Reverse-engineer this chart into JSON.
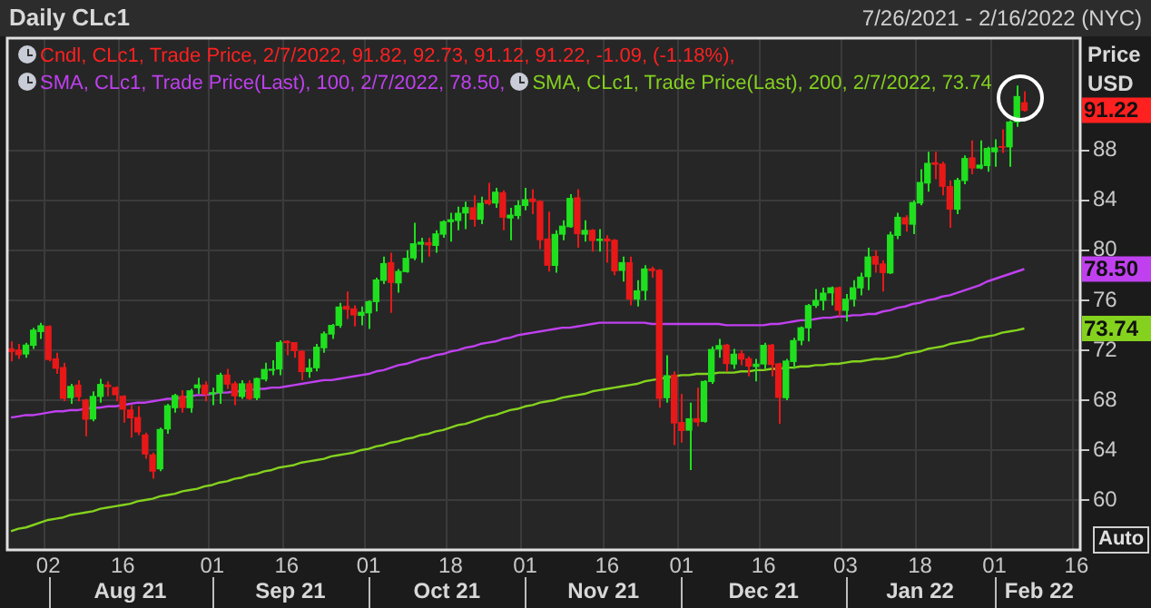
{
  "chart_data": {
    "type": "candlestick",
    "title": "Daily CLc1",
    "subtitle": "7/26/2021 - 2/16/2022 (NYC)",
    "ylabel": "Price USD",
    "annotations": [
      "Aug 21",
      "Sep 21",
      "Oct 21",
      "Nov 21",
      "Dec 21",
      "Jan 22",
      "Feb 22",
      "Auto",
      "91.22",
      "78.50",
      "73.74"
    ],
    "categories": [
      null,
      null,
      null,
      null,
      null,
      "02",
      null,
      null,
      null,
      null,
      null,
      null,
      null,
      null,
      null,
      "16",
      null,
      null,
      null,
      null,
      null,
      null,
      null,
      null,
      null,
      null,
      null,
      "01",
      null,
      null,
      null,
      null,
      null,
      null,
      null,
      null,
      null,
      "16",
      null,
      null,
      null,
      null,
      null,
      null,
      null,
      null,
      null,
      null,
      "01",
      null,
      null,
      null,
      null,
      null,
      null,
      null,
      null,
      null,
      null,
      "18",
      null,
      null,
      null,
      null,
      null,
      null,
      null,
      null,
      null,
      "01",
      null,
      null,
      null,
      null,
      null,
      null,
      null,
      null,
      null,
      null,
      "16",
      null,
      null,
      null,
      null,
      null,
      null,
      null,
      null,
      null,
      "01",
      null,
      null,
      null,
      null,
      null,
      null,
      null,
      null,
      null,
      null,
      "16",
      null,
      null,
      null,
      null,
      null,
      null,
      null,
      null,
      null,
      null,
      "03",
      null,
      null,
      null,
      null,
      null,
      null,
      null,
      null,
      null,
      "18",
      null,
      null,
      null,
      null,
      null,
      null,
      null,
      null,
      null,
      "01",
      null,
      null,
      null,
      null,
      null,
      null,
      null,
      null,
      null,
      null,
      "16"
    ],
    "ylim": [
      56,
      97
    ],
    "yticks": [
      60,
      64,
      68,
      72,
      76,
      80,
      84,
      88
    ],
    "grid": true,
    "legend": "top left",
    "series": [
      {
        "name": "Cndl, CLc1, Trade Price, 2/7/2022, 91.82, 92.73, 91.12, 91.22, -1.09, (-1.18%),",
        "color": "#ff2020",
        "ohlc": [
          [
            72.1,
            72.7,
            71.1,
            71.9
          ],
          [
            72.0,
            72.5,
            71.3,
            71.65
          ],
          [
            71.7,
            72.6,
            71.4,
            72.4
          ],
          [
            72.4,
            73.8,
            72.1,
            73.6
          ],
          [
            73.5,
            74.2,
            72.9,
            73.95
          ],
          [
            73.9,
            74.0,
            71.1,
            71.26
          ],
          [
            71.3,
            71.8,
            70.1,
            70.56
          ],
          [
            70.6,
            71.0,
            67.9,
            68.15
          ],
          [
            68.2,
            69.3,
            67.7,
            69.09
          ],
          [
            69.2,
            69.6,
            67.9,
            68.28
          ],
          [
            68.0,
            68.1,
            65.1,
            66.48
          ],
          [
            66.5,
            68.7,
            66.3,
            68.29
          ],
          [
            68.3,
            69.7,
            67.8,
            69.25
          ],
          [
            69.2,
            69.5,
            68.3,
            69.09
          ],
          [
            69.0,
            69.1,
            67.9,
            68.44
          ],
          [
            68.3,
            68.4,
            66.2,
            67.29
          ],
          [
            67.2,
            67.6,
            65.0,
            66.59
          ],
          [
            66.6,
            67.5,
            65.2,
            65.46
          ],
          [
            65.2,
            65.4,
            63.3,
            63.69
          ],
          [
            63.6,
            63.8,
            61.7,
            62.32
          ],
          [
            62.5,
            65.8,
            62.3,
            65.64
          ],
          [
            65.7,
            67.7,
            65.3,
            67.54
          ],
          [
            67.4,
            68.5,
            67.0,
            68.36
          ],
          [
            68.3,
            68.8,
            67.0,
            67.42
          ],
          [
            67.4,
            68.9,
            67.0,
            68.74
          ],
          [
            69.0,
            69.8,
            68.5,
            69.21
          ],
          [
            69.2,
            69.5,
            67.9,
            68.5
          ],
          [
            68.5,
            69.0,
            67.6,
            68.59
          ],
          [
            68.6,
            70.2,
            67.7,
            69.99
          ],
          [
            70.0,
            70.5,
            68.9,
            69.29
          ],
          [
            69.3,
            69.5,
            67.6,
            68.35
          ],
          [
            68.3,
            69.6,
            68.1,
            69.3
          ],
          [
            69.3,
            69.6,
            68.0,
            68.14
          ],
          [
            68.2,
            69.8,
            68.0,
            69.72
          ],
          [
            69.7,
            71.0,
            69.5,
            70.45
          ],
          [
            70.4,
            71.2,
            70.0,
            70.46
          ],
          [
            70.5,
            72.8,
            70.0,
            72.61
          ],
          [
            72.7,
            72.8,
            71.6,
            72.61
          ],
          [
            72.6,
            72.6,
            71.4,
            71.97
          ],
          [
            71.9,
            72.0,
            69.6,
            70.29
          ],
          [
            70.3,
            71.3,
            69.8,
            70.56
          ],
          [
            70.6,
            72.5,
            70.3,
            72.23
          ],
          [
            72.2,
            73.5,
            71.8,
            73.3
          ],
          [
            73.3,
            74.1,
            72.9,
            73.98
          ],
          [
            74.0,
            75.8,
            73.8,
            75.45
          ],
          [
            75.5,
            76.7,
            74.5,
            75.29
          ],
          [
            75.3,
            75.6,
            73.9,
            74.83
          ],
          [
            74.8,
            75.5,
            74.0,
            75.03
          ],
          [
            75.0,
            76.0,
            73.7,
            75.88
          ],
          [
            75.9,
            77.8,
            75.1,
            77.62
          ],
          [
            77.6,
            79.5,
            77.3,
            78.93
          ],
          [
            79.0,
            79.8,
            75.0,
            77.43
          ],
          [
            77.4,
            78.5,
            76.6,
            78.3
          ],
          [
            78.3,
            80.0,
            78.2,
            79.35
          ],
          [
            79.4,
            82.2,
            79.2,
            80.52
          ],
          [
            80.5,
            81.0,
            79.0,
            80.64
          ],
          [
            80.6,
            81.0,
            79.5,
            80.44
          ],
          [
            80.4,
            81.6,
            79.8,
            81.31
          ],
          [
            81.3,
            82.4,
            81.0,
            82.28
          ],
          [
            82.3,
            83.0,
            80.7,
            82.44
          ],
          [
            82.4,
            83.5,
            81.6,
            82.96
          ],
          [
            83.0,
            83.9,
            81.7,
            83.42
          ],
          [
            83.4,
            84.4,
            81.9,
            82.5
          ],
          [
            82.5,
            84.3,
            82.1,
            83.76
          ],
          [
            84.0,
            85.4,
            83.6,
            83.76
          ],
          [
            83.8,
            85.0,
            83.4,
            84.65
          ],
          [
            84.6,
            84.8,
            81.6,
            82.66
          ],
          [
            82.6,
            83.4,
            80.8,
            82.81
          ],
          [
            82.8,
            84.0,
            82.5,
            83.57
          ],
          [
            83.6,
            85.0,
            83.2,
            84.05
          ],
          [
            84.1,
            84.9,
            82.9,
            83.91
          ],
          [
            83.9,
            84.0,
            80.1,
            80.86
          ],
          [
            80.9,
            83.1,
            78.3,
            78.81
          ],
          [
            78.8,
            81.6,
            78.2,
            81.27
          ],
          [
            81.3,
            82.4,
            80.8,
            81.93
          ],
          [
            81.9,
            84.5,
            81.8,
            84.15
          ],
          [
            84.2,
            84.9,
            80.2,
            81.34
          ],
          [
            81.3,
            82.4,
            80.7,
            81.59
          ],
          [
            81.6,
            81.7,
            79.9,
            80.79
          ],
          [
            80.8,
            81.7,
            79.9,
            80.88
          ],
          [
            80.9,
            81.2,
            79.0,
            80.76
          ],
          [
            80.8,
            80.9,
            78.0,
            78.36
          ],
          [
            78.4,
            79.5,
            77.5,
            79.01
          ],
          [
            79.0,
            79.5,
            75.6,
            76.1
          ],
          [
            76.1,
            77.6,
            75.5,
            76.75
          ],
          [
            76.8,
            78.8,
            76.0,
            78.5
          ],
          [
            78.5,
            78.7,
            77.8,
            78.39
          ],
          [
            78.4,
            78.5,
            67.4,
            68.15
          ],
          [
            68.2,
            71.6,
            67.8,
            69.95
          ],
          [
            70.0,
            70.3,
            64.4,
            66.18
          ],
          [
            66.2,
            68.5,
            64.6,
            65.57
          ],
          [
            65.6,
            67.8,
            62.4,
            66.5
          ],
          [
            66.5,
            69.0,
            65.9,
            66.26
          ],
          [
            66.3,
            69.6,
            66.2,
            69.49
          ],
          [
            69.5,
            72.3,
            69.3,
            72.05
          ],
          [
            72.1,
            72.9,
            71.4,
            72.36
          ],
          [
            72.4,
            72.5,
            70.3,
            70.94
          ],
          [
            70.9,
            72.1,
            70.5,
            71.67
          ],
          [
            71.7,
            72.0,
            70.8,
            71.29
          ],
          [
            71.3,
            71.5,
            69.9,
            70.73
          ],
          [
            70.7,
            71.3,
            69.5,
            70.87
          ],
          [
            70.9,
            72.6,
            70.5,
            72.38
          ],
          [
            72.4,
            72.5,
            69.9,
            70.86
          ],
          [
            70.9,
            71.0,
            66.1,
            68.23
          ],
          [
            68.2,
            71.3,
            68.0,
            71.12
          ],
          [
            71.1,
            73.0,
            70.5,
            72.76
          ],
          [
            72.8,
            73.9,
            72.4,
            73.79
          ],
          [
            73.8,
            75.7,
            72.7,
            75.57
          ],
          [
            75.6,
            76.9,
            75.4,
            75.98
          ],
          [
            76.0,
            77.0,
            75.2,
            76.56
          ],
          [
            76.6,
            77.1,
            75.6,
            76.99
          ],
          [
            77.0,
            77.1,
            74.7,
            75.21
          ],
          [
            75.2,
            76.5,
            74.3,
            76.08
          ],
          [
            76.1,
            77.6,
            75.5,
            76.99
          ],
          [
            77.0,
            78.2,
            76.4,
            77.85
          ],
          [
            77.9,
            80.2,
            76.8,
            79.46
          ],
          [
            79.5,
            80.0,
            78.2,
            78.9
          ],
          [
            78.9,
            79.2,
            76.7,
            78.23
          ],
          [
            78.2,
            81.5,
            78.1,
            81.22
          ],
          [
            81.2,
            83.0,
            80.9,
            82.64
          ],
          [
            82.6,
            82.8,
            81.5,
            82.12
          ],
          [
            82.1,
            84.0,
            81.3,
            83.82
          ],
          [
            83.8,
            86.5,
            83.6,
            85.43
          ],
          [
            85.4,
            87.9,
            84.7,
            86.96
          ],
          [
            87.0,
            87.9,
            85.7,
            86.9
          ],
          [
            86.9,
            87.1,
            84.4,
            85.14
          ],
          [
            85.1,
            85.6,
            81.8,
            83.31
          ],
          [
            83.3,
            85.8,
            82.9,
            85.6
          ],
          [
            85.6,
            87.6,
            85.3,
            87.35
          ],
          [
            87.4,
            88.8,
            86.1,
            86.61
          ],
          [
            86.6,
            88.8,
            86.5,
            86.82
          ],
          [
            86.8,
            88.3,
            86.3,
            88.15
          ],
          [
            87.9,
            88.9,
            86.7,
            88.2
          ],
          [
            88.3,
            89.7,
            87.8,
            88.26
          ],
          [
            88.3,
            90.4,
            86.7,
            90.27
          ],
          [
            90.3,
            93.2,
            89.9,
            92.31
          ],
          [
            91.82,
            92.73,
            91.12,
            91.22
          ],
          null,
          null,
          null,
          null,
          null,
          null,
          null
        ],
        "colors": [
          "#e81818",
          "#e81818",
          "#1fe01f",
          "#1fe01f",
          "#1fe01f",
          "#e81818",
          "#e81818",
          "#e81818",
          "#1fe01f",
          "#e81818",
          "#e81818",
          "#1fe01f",
          "#1fe01f",
          "#e81818",
          "#e81818",
          "#e81818",
          "#e81818",
          "#e81818",
          "#e81818",
          "#e81818",
          "#1fe01f",
          "#1fe01f",
          "#1fe01f",
          "#e81818",
          "#1fe01f",
          "#1fe01f",
          "#e81818",
          "#1fe01f",
          "#1fe01f",
          "#e81818",
          "#e81818",
          "#1fe01f",
          "#e81818",
          "#1fe01f",
          "#1fe01f",
          "#1fe01f",
          "#1fe01f",
          "#e81818",
          "#e81818",
          "#e81818",
          "#1fe01f",
          "#1fe01f",
          "#1fe01f",
          "#1fe01f",
          "#1fe01f",
          "#e81818",
          "#e81818",
          "#1fe01f",
          "#1fe01f",
          "#1fe01f",
          "#1fe01f",
          "#e81818",
          "#1fe01f",
          "#1fe01f",
          "#1fe01f",
          "#1fe01f",
          "#e81818",
          "#1fe01f",
          "#1fe01f",
          "#1fe01f",
          "#1fe01f",
          "#1fe01f",
          "#e81818",
          "#1fe01f",
          "#e81818",
          "#1fe01f",
          "#e81818",
          "#1fe01f",
          "#1fe01f",
          "#1fe01f",
          "#e81818",
          "#e81818",
          "#e81818",
          "#1fe01f",
          "#1fe01f",
          "#1fe01f",
          "#e81818",
          "#1fe01f",
          "#e81818",
          "#1fe01f",
          "#e81818",
          "#e81818",
          "#1fe01f",
          "#e81818",
          "#1fe01f",
          "#1fe01f",
          "#e81818",
          "#e81818",
          "#1fe01f",
          "#e81818",
          "#e81818",
          "#1fe01f",
          "#e81818",
          "#1fe01f",
          "#1fe01f",
          "#1fe01f",
          "#e81818",
          "#1fe01f",
          "#e81818",
          "#e81818",
          "#1fe01f",
          "#1fe01f",
          "#e81818",
          "#e81818",
          "#1fe01f",
          "#1fe01f",
          "#1fe01f",
          "#1fe01f",
          "#1fe01f",
          "#1fe01f",
          "#1fe01f",
          "#e81818",
          "#1fe01f",
          "#1fe01f",
          "#1fe01f",
          "#1fe01f",
          "#e81818",
          "#e81818",
          "#1fe01f",
          "#1fe01f",
          "#e81818",
          "#1fe01f",
          "#1fe01f",
          "#1fe01f",
          "#e81818",
          "#e81818",
          "#e81818",
          "#1fe01f",
          "#1fe01f",
          "#e81818",
          "#1fe01f",
          "#1fe01f",
          "#1fe01f",
          "#e81818",
          "#1fe01f",
          "#1fe01f",
          "#e81818",
          null,
          null,
          null,
          null,
          null,
          null,
          null
        ]
      },
      {
        "type": "line",
        "name": "SMA, CLc1, Trade Price(Last), 100, 2/7/2022, 78.50,",
        "color": "#c040f0",
        "values": [
          66.6,
          66.7,
          66.8,
          66.8,
          66.9,
          67.0,
          67.1,
          67.1,
          67.2,
          67.2,
          67.3,
          67.4,
          67.4,
          67.5,
          67.5,
          67.6,
          67.7,
          67.8,
          67.8,
          67.9,
          68.0,
          68.1,
          68.1,
          68.2,
          68.3,
          68.4,
          68.4,
          68.5,
          68.6,
          68.6,
          68.7,
          68.7,
          68.8,
          68.9,
          68.9,
          69.0,
          69.0,
          69.1,
          69.2,
          69.3,
          69.4,
          69.5,
          69.6,
          69.6,
          69.7,
          69.8,
          69.9,
          70.0,
          70.1,
          70.3,
          70.4,
          70.6,
          70.8,
          70.9,
          71.1,
          71.3,
          71.4,
          71.6,
          71.7,
          71.9,
          72.0,
          72.2,
          72.3,
          72.5,
          72.6,
          72.7,
          72.9,
          73.0,
          73.2,
          73.3,
          73.4,
          73.5,
          73.6,
          73.7,
          73.8,
          73.8,
          73.9,
          74.0,
          74.1,
          74.2,
          74.2,
          74.2,
          74.2,
          74.2,
          74.2,
          74.2,
          74.1,
          74.1,
          74.1,
          74.1,
          74.1,
          74.1,
          74.1,
          74.1,
          74.1,
          74.1,
          74.0,
          74.0,
          74.0,
          74.0,
          74.0,
          74.0,
          74.1,
          74.1,
          74.2,
          74.3,
          74.4,
          74.4,
          74.5,
          74.6,
          74.6,
          74.7,
          74.7,
          74.8,
          74.8,
          74.9,
          74.9,
          75.1,
          75.2,
          75.4,
          75.5,
          75.7,
          75.8,
          76.0,
          76.1,
          76.3,
          76.4,
          76.6,
          76.8,
          77.0,
          77.2,
          77.5,
          77.7,
          77.9,
          78.1,
          78.3,
          78.5,
          null,
          null,
          null,
          null,
          null,
          null,
          null
        ]
      },
      {
        "type": "line",
        "name": "SMA, CLc1, Trade Price(Last), 200, 2/7/2022, 73.74",
        "color": "#84d21e",
        "values": [
          57.5,
          57.7,
          57.8,
          58.0,
          58.2,
          58.4,
          58.5,
          58.6,
          58.8,
          58.9,
          59.0,
          59.1,
          59.3,
          59.4,
          59.5,
          59.6,
          59.7,
          59.9,
          60.0,
          60.1,
          60.3,
          60.4,
          60.5,
          60.7,
          60.8,
          60.9,
          61.1,
          61.2,
          61.4,
          61.5,
          61.7,
          61.8,
          62.0,
          62.1,
          62.3,
          62.4,
          62.6,
          62.7,
          62.8,
          63.0,
          63.1,
          63.2,
          63.3,
          63.5,
          63.6,
          63.7,
          63.8,
          64.0,
          64.1,
          64.3,
          64.4,
          64.6,
          64.7,
          64.9,
          65.0,
          65.2,
          65.3,
          65.5,
          65.6,
          65.8,
          66.0,
          66.1,
          66.3,
          66.5,
          66.7,
          66.8,
          67.0,
          67.2,
          67.3,
          67.5,
          67.6,
          67.8,
          67.9,
          68.0,
          68.2,
          68.3,
          68.4,
          68.5,
          68.7,
          68.8,
          68.9,
          69.0,
          69.1,
          69.2,
          69.3,
          69.5,
          69.6,
          69.7,
          69.8,
          69.9,
          70.0,
          70.0,
          70.1,
          70.1,
          70.1,
          70.2,
          70.2,
          70.2,
          70.3,
          70.3,
          70.4,
          70.4,
          70.5,
          70.5,
          70.6,
          70.6,
          70.7,
          70.7,
          70.8,
          70.8,
          70.9,
          70.9,
          71.0,
          71.1,
          71.1,
          71.2,
          71.3,
          71.3,
          71.4,
          71.5,
          71.7,
          71.8,
          71.9,
          72.1,
          72.2,
          72.3,
          72.5,
          72.6,
          72.7,
          72.8,
          73.0,
          73.1,
          73.2,
          73.4,
          73.5,
          73.6,
          73.74,
          null,
          null,
          null,
          null,
          null,
          null,
          null
        ]
      }
    ]
  }
}
